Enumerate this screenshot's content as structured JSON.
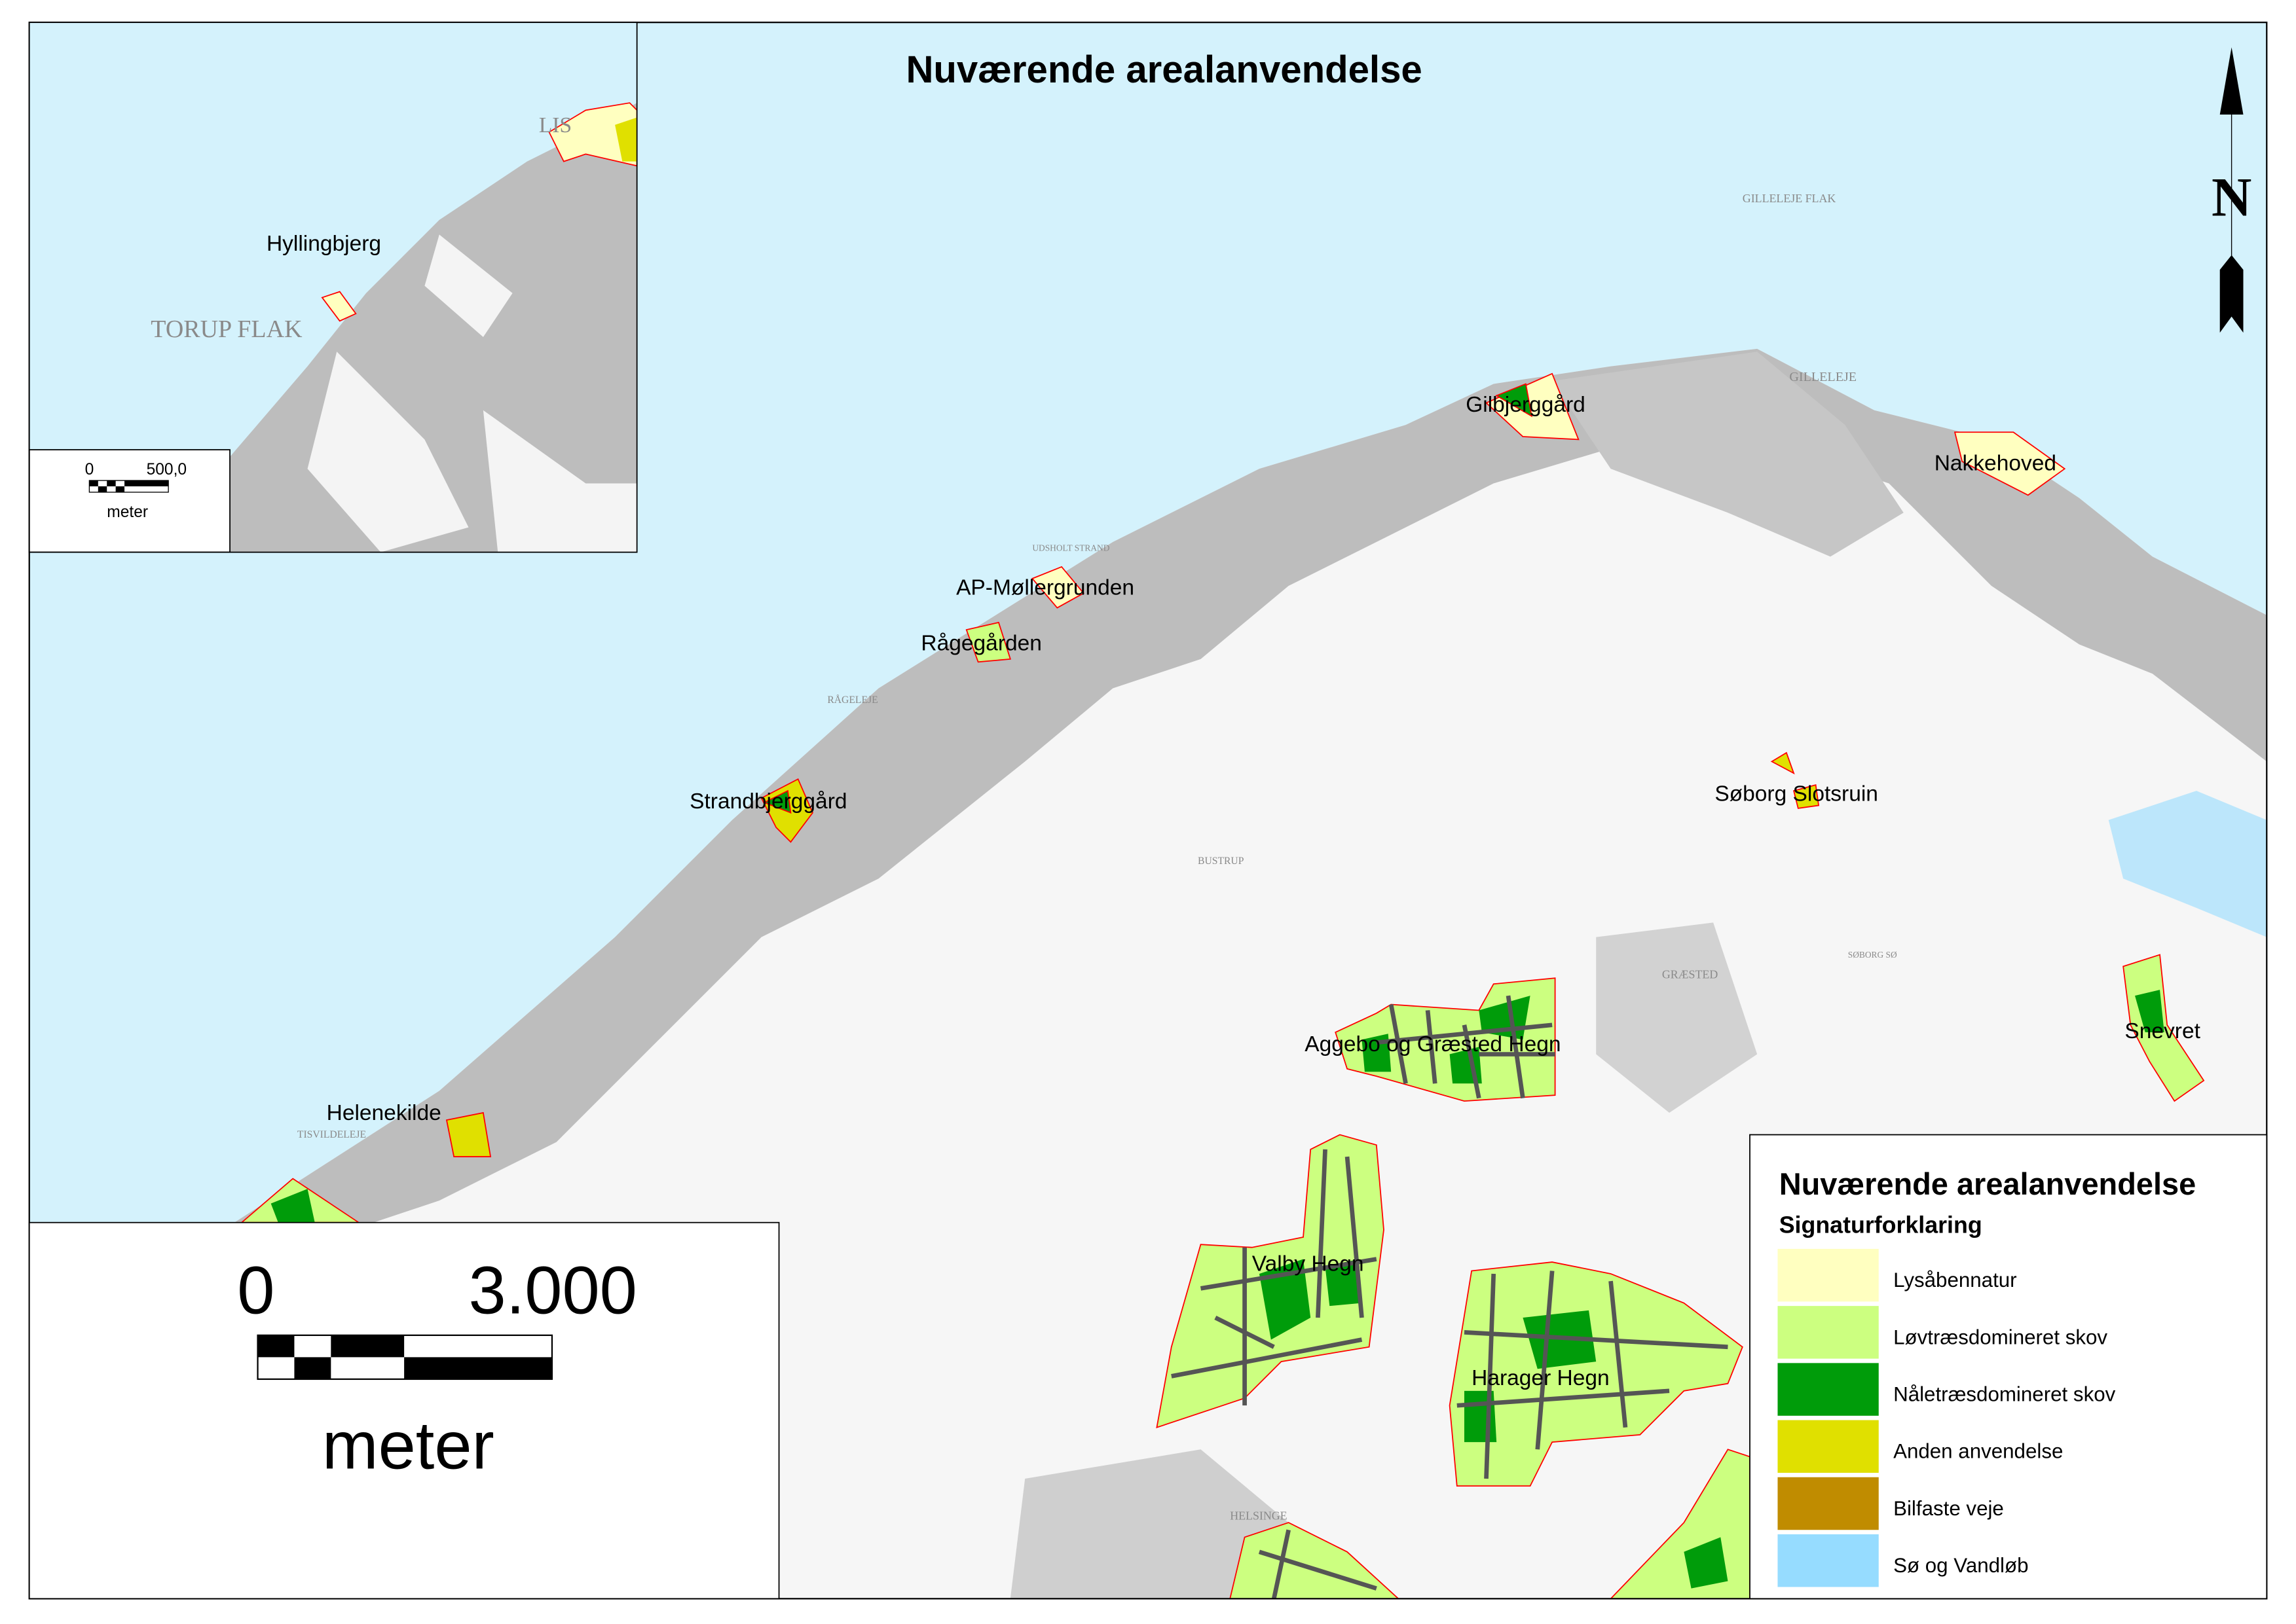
{
  "title": "Nuværende arealanvendelse",
  "north_arrow": {
    "letter": "N"
  },
  "main_scale_bar": {
    "start": "0",
    "end": "3.000",
    "unit": "meter"
  },
  "inset": {
    "scale_bar": {
      "start": "0",
      "end": "500,0",
      "unit": "meter"
    },
    "place_labels": [
      "Hyllingbjerg"
    ],
    "area_labels": [
      "TORUP FLAK",
      "LIS"
    ]
  },
  "place_labels": [
    "Gilbjerggård",
    "Nakkehoved",
    "AP-Møllergrunden",
    "Rågegården",
    "Strandbjerggård",
    "Søborg Slotsruin",
    "Aggebo og Græsted Hegn",
    "Snevret",
    "Helenekilde",
    "Valby Hegn",
    "Harager Hegn"
  ],
  "background_labels": [
    "GILLELEJE",
    "GILLELEJE FLAK",
    "GRÆSTED",
    "HELSINGE",
    "TISVILDELEJE",
    "BUSTRUP",
    "SØBORG SØ",
    "RÅGELEJE",
    "UDSHOLT STRAND"
  ],
  "legend": {
    "title": "Nuværende arealanvendelse",
    "subtitle": "Signaturforklaring",
    "items": [
      {
        "label": "Lysåbennatur",
        "color": "#FFFFC0"
      },
      {
        "label": "Løvtræsdomineret skov",
        "color": "#CCFF80"
      },
      {
        "label": "Nåletræsdomineret skov",
        "color": "#009C0A"
      },
      {
        "label": "Anden anvendelse",
        "color": "#E0E000"
      },
      {
        "label": "Bilfaste veje",
        "color": "#C08C00"
      },
      {
        "label": "Sø og Vandløb",
        "color": "#96DCFF"
      }
    ]
  },
  "colors": {
    "sea": "#D4F2FC",
    "built_up": "#BDBDBD",
    "land": "#FFFFFF",
    "road": "#555555",
    "boundary": "#FF0000"
  }
}
